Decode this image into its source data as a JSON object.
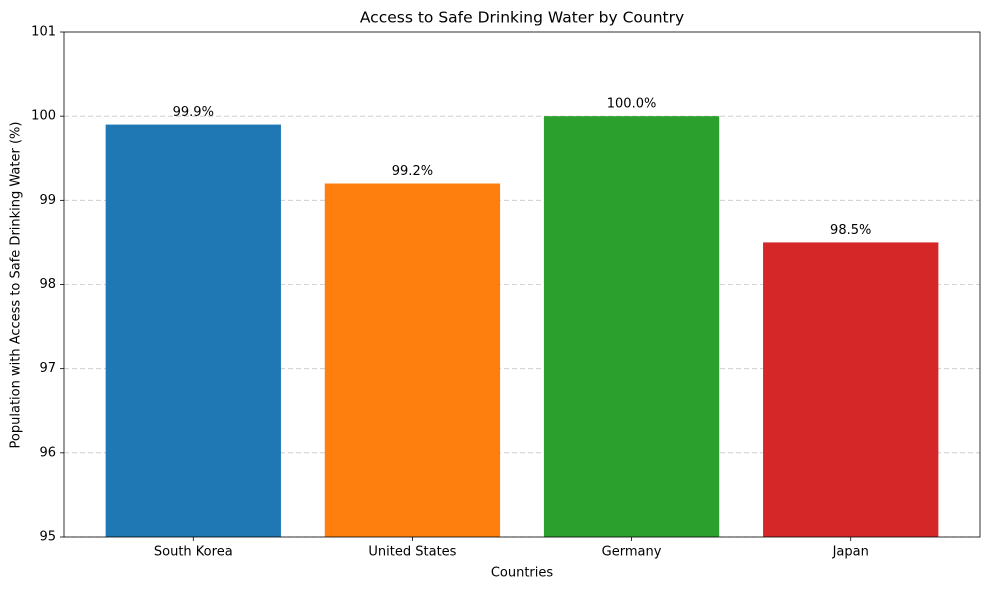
{
  "chart_data": {
    "type": "bar",
    "title": "Access to Safe Drinking Water by Country",
    "x_label": "Countries",
    "y_label": "Population with Access to Safe Drinking Water (%)",
    "categories": [
      "South Korea",
      "United States",
      "Germany",
      "Japan"
    ],
    "values": [
      99.9,
      99.2,
      100.0,
      98.5
    ],
    "value_labels": [
      "99.9%",
      "99.2%",
      "100.0%",
      "98.5%"
    ],
    "colors": [
      "#1f77b4",
      "#ff7f0e",
      "#2ca02c",
      "#d62728"
    ],
    "ylim": [
      95,
      101
    ],
    "yticks": [
      95,
      96,
      97,
      98,
      99,
      100,
      101
    ],
    "grid": true
  }
}
